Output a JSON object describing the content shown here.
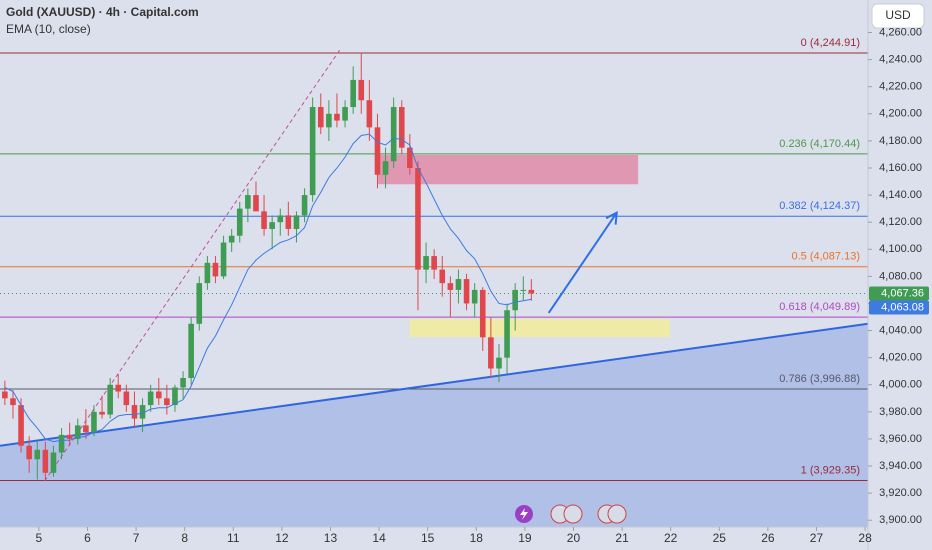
{
  "chart_data": {
    "type": "candlestick",
    "title": "Gold (XAUUSD) · 4h · Capital.com",
    "subtitle": "EMA (10, close)",
    "currency": "USD",
    "up_color": "#3f9c52",
    "down_color": "#e0474c",
    "x": [
      -0.7,
      -0.533,
      -0.367,
      -0.2,
      -0.033,
      0.133,
      0.3,
      0.467,
      0.633,
      0.8,
      0.967,
      1.133,
      1.3,
      1.467,
      1.633,
      1.8,
      1.967,
      2.133,
      2.3,
      2.467,
      2.633,
      2.8,
      2.967,
      3.133,
      3.3,
      3.467,
      3.633,
      3.8,
      3.967,
      4.133,
      4.3,
      4.467,
      4.633,
      4.8,
      4.967,
      5.133,
      5.3,
      5.467,
      5.633,
      5.8,
      5.967,
      6.133,
      6.3,
      6.467,
      6.633,
      6.8,
      6.967,
      7.133,
      7.3,
      7.467,
      7.633,
      7.8,
      7.967,
      8.133,
      8.3,
      8.467,
      8.633,
      8.8,
      8.967,
      9.133,
      9.3,
      9.467,
      9.633,
      9.8,
      9.967,
      10.133
    ],
    "open": [
      3995,
      3990,
      3985,
      3955,
      3945,
      3952,
      3935,
      3950,
      3963,
      3960,
      3970,
      3965,
      3980,
      3978,
      4000,
      3995,
      3985,
      3975,
      3985,
      3995,
      3990,
      3985,
      3998,
      4005,
      4045,
      4075,
      4090,
      4080,
      4105,
      4110,
      4130,
      4140,
      4128,
      4115,
      4120,
      4125,
      4115,
      4125,
      4140,
      4205,
      4190,
      4200,
      4195,
      4205,
      4225,
      4210,
      4190,
      4155,
      4165,
      4205,
      4175,
      4160,
      4085,
      4095,
      4085,
      4075,
      4070,
      4078,
      4060,
      4070,
      4035,
      4012,
      4020,
      4055,
      4070,
      4070
    ],
    "high": [
      4003,
      3996,
      3990,
      3962,
      3958,
      3958,
      3955,
      3968,
      3972,
      3975,
      3982,
      3985,
      3992,
      4005,
      4008,
      4000,
      3995,
      3990,
      4000,
      4005,
      4000,
      4000,
      4010,
      4050,
      4080,
      4095,
      4095,
      4110,
      4115,
      4135,
      4145,
      4150,
      4140,
      4125,
      4130,
      4135,
      4128,
      4145,
      4212,
      4215,
      4210,
      4215,
      4210,
      4235,
      4245,
      4225,
      4200,
      4175,
      4212,
      4210,
      4185,
      4165,
      4105,
      4100,
      4095,
      4080,
      4085,
      4082,
      4075,
      4072,
      4050,
      4030,
      4060,
      4075,
      4080,
      4078
    ],
    "low": [
      3985,
      3975,
      3950,
      3935,
      3930,
      3930,
      3932,
      3945,
      3955,
      3956,
      3960,
      3962,
      3975,
      3975,
      3990,
      3980,
      3968,
      3965,
      3980,
      3985,
      3978,
      3980,
      3990,
      4000,
      4040,
      4070,
      4075,
      4078,
      4098,
      4105,
      4120,
      4130,
      4110,
      4100,
      4110,
      4110,
      4105,
      4120,
      4135,
      4185,
      4180,
      4190,
      4190,
      4200,
      4200,
      4180,
      4145,
      4145,
      4160,
      4170,
      4155,
      4055,
      4075,
      4078,
      4065,
      4050,
      4060,
      4055,
      4050,
      4025,
      4005,
      4002,
      4008,
      4040,
      4062,
      4062
    ],
    "close": [
      3990,
      3985,
      3955,
      3945,
      3952,
      3935,
      3950,
      3963,
      3960,
      3970,
      3965,
      3980,
      3978,
      4000,
      3995,
      3985,
      3975,
      3985,
      3995,
      3990,
      3985,
      3998,
      4005,
      4045,
      4075,
      4090,
      4080,
      4105,
      4110,
      4130,
      4140,
      4128,
      4115,
      4120,
      4125,
      4115,
      4125,
      4140,
      4205,
      4190,
      4200,
      4195,
      4205,
      4225,
      4210,
      4190,
      4155,
      4165,
      4205,
      4175,
      4160,
      4085,
      4095,
      4085,
      4075,
      4070,
      4078,
      4060,
      4070,
      4035,
      4012,
      4020,
      4055,
      4070,
      4070,
      4067.36
    ],
    "ema_color": "#3d7be0",
    "ema": [
      3998,
      3995,
      3985,
      3975,
      3968,
      3960,
      3958,
      3959,
      3959,
      3961,
      3962,
      3965,
      3967,
      3973,
      3977,
      3978,
      3978,
      3979,
      3982,
      3983,
      3983,
      3986,
      3989,
      3999,
      4013,
      4027,
      4036,
      4048,
      4059,
      4072,
      4085,
      4092,
      4097,
      4101,
      4105,
      4107,
      4110,
      4116,
      4132,
      4142,
      4153,
      4160,
      4168,
      4178,
      4184,
      4185,
      4179,
      4177,
      4182,
      4181,
      4177,
      4160,
      4149,
      4137,
      4125,
      4115,
      4108,
      4099,
      4093,
      4082,
      4069,
      4060,
      4059,
      4061,
      4062,
      4063.08
    ],
    "xlim": [
      -0.8,
      17.06
    ],
    "xticks": [
      {
        "value": 0,
        "label": "5"
      },
      {
        "value": 1,
        "label": "6"
      },
      {
        "value": 2,
        "label": "7"
      },
      {
        "value": 3,
        "label": "8"
      },
      {
        "value": 4,
        "label": "11"
      },
      {
        "value": 5,
        "label": "12"
      },
      {
        "value": 6,
        "label": "13"
      },
      {
        "value": 7,
        "label": "14"
      },
      {
        "value": 8,
        "label": "15"
      },
      {
        "value": 9,
        "label": "18"
      },
      {
        "value": 10,
        "label": "19"
      },
      {
        "value": 11,
        "label": "20"
      },
      {
        "value": 12,
        "label": "21"
      },
      {
        "value": 13,
        "label": "22"
      },
      {
        "value": 14,
        "label": "25"
      },
      {
        "value": 15,
        "label": "26"
      },
      {
        "value": 16,
        "label": "27"
      },
      {
        "value": 17,
        "label": "28"
      }
    ],
    "ylim": [
      3895,
      4284
    ],
    "yticks": [
      {
        "value": 3900,
        "label": "3,900.00"
      },
      {
        "value": 3920,
        "label": "3,920.00"
      },
      {
        "value": 3940,
        "label": "3,940.00"
      },
      {
        "value": 3960,
        "label": "3,960.00"
      },
      {
        "value": 3980,
        "label": "3,980.00"
      },
      {
        "value": 4000,
        "label": "4,000.00"
      },
      {
        "value": 4020,
        "label": "4,020.00"
      },
      {
        "value": 4040,
        "label": "4,040.00"
      },
      {
        "value": 4060,
        "label": "4,060.00"
      },
      {
        "value": 4080,
        "label": "4,080.00"
      },
      {
        "value": 4100,
        "label": "4,100.00"
      },
      {
        "value": 4120,
        "label": "4,120.00"
      },
      {
        "value": 4140,
        "label": "4,140.00"
      },
      {
        "value": 4160,
        "label": "4,160.00"
      },
      {
        "value": 4180,
        "label": "4,180.00"
      },
      {
        "value": 4200,
        "label": "4,200.00"
      },
      {
        "value": 4220,
        "label": "4,220.00"
      },
      {
        "value": 4240,
        "label": "4,240.00"
      },
      {
        "value": 4260,
        "label": "4,260.00"
      }
    ],
    "last_price": {
      "value": 4067.36,
      "label": "4,067.36",
      "color": "#3f9c52"
    },
    "ema_last": {
      "value": 4063.08,
      "label": "4,063.08",
      "color": "#3d7be0"
    },
    "fib_levels": [
      {
        "value": 4244.91,
        "label": "0 (4,244.91)",
        "color": "#9b2a3a"
      },
      {
        "value": 4170.44,
        "label": "0.236 (4,170.44)",
        "color": "#4c9a48"
      },
      {
        "value": 4124.37,
        "label": "0.382 (4,124.37)",
        "color": "#3d6fe0"
      },
      {
        "value": 4087.13,
        "label": "0.5 (4,087.13)",
        "color": "#e8742c"
      },
      {
        "value": 4049.89,
        "label": "0.618 (4,049.89)",
        "color": "#b04ac0"
      },
      {
        "value": 3996.88,
        "label": "0.786 (3,996.88)",
        "color": "#555a66"
      },
      {
        "value": 3929.35,
        "label": "1 (3,929.35)",
        "color": "#9b2a3a"
      }
    ],
    "zones": [
      {
        "x0": 6.98,
        "x1": 12.33,
        "top": 4169.6,
        "bottom": 4148,
        "color": "#e08aa8"
      },
      {
        "x0": 7.63,
        "x1": 12.98,
        "top": 4048.5,
        "bottom": 4035.2,
        "color": "#f2ec9a"
      }
    ],
    "trend_line": {
      "x": [
        -0.8,
        17.06
      ],
      "y": [
        3955,
        4045
      ],
      "color": "#2f66e0"
    },
    "fib_trend_line": {
      "x": [
        0.12,
        6.19
      ],
      "y": [
        3929,
        4247
      ],
      "color": "#c0509a"
    },
    "arrow": {
      "x": [
        10.49,
        11.89
      ],
      "y": [
        4053,
        4127
      ],
      "color": "#2f6fe8"
    }
  }
}
